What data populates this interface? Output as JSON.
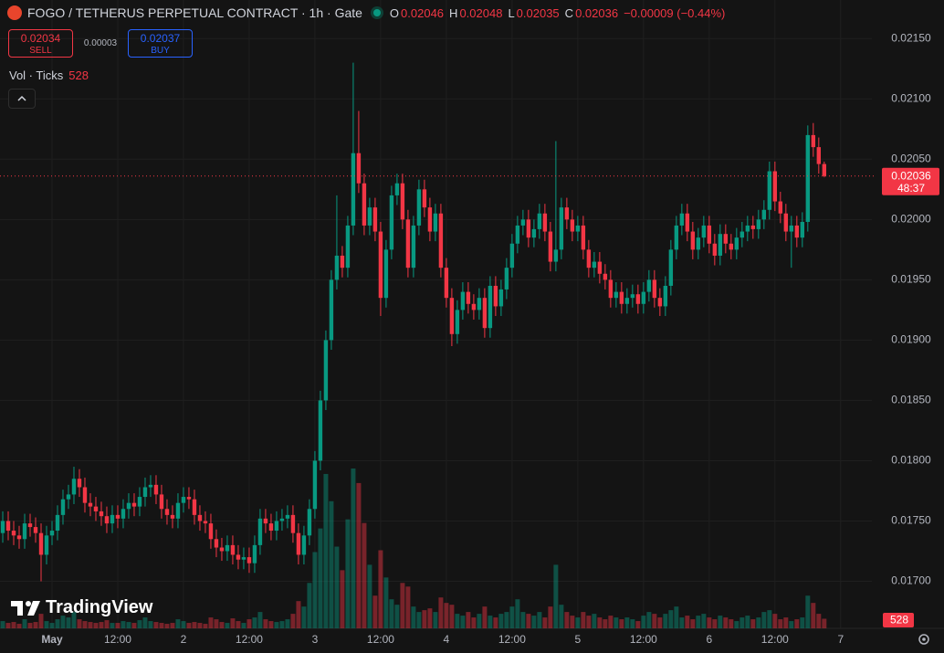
{
  "header": {
    "title": "FOGO / TETHERUS PERPETUAL CONTRACT · 1h · Gate",
    "o": "O",
    "h": "H",
    "l": "L",
    "c": "C",
    "change": "−0.00009 (−0.44%)"
  },
  "trade": {
    "sell_price": "0.02034",
    "sell": "SELL",
    "spread": "0.00003",
    "buy_price": "0.02037",
    "buy": "BUY"
  },
  "volume_legend": "Vol · Ticks",
  "countdown": "48:37",
  "watermark": "TradingView",
  "chart_data": {
    "type": "candlestick",
    "open": [
      0.0174,
      0.0175,
      0.01742,
      0.01738,
      0.01735,
      0.01748,
      0.01745,
      0.0174,
      0.01722,
      0.01738,
      0.01742,
      0.01755,
      0.01768,
      0.01772,
      0.01785,
      0.01778,
      0.01765,
      0.01762,
      0.01758,
      0.01754,
      0.01748,
      0.01755,
      0.01752,
      0.0176,
      0.01765,
      0.01762,
      0.0177,
      0.01778,
      0.0178,
      0.01772,
      0.0176,
      0.01755,
      0.01752,
      0.01765,
      0.0177,
      0.01768,
      0.01755,
      0.0175,
      0.01748,
      0.01735,
      0.01728,
      0.01725,
      0.0173,
      0.01722,
      0.01718,
      0.0172,
      0.01715,
      0.0173,
      0.01752,
      0.01748,
      0.01742,
      0.0175,
      0.01752,
      0.01755,
      0.0174,
      0.01722,
      0.01738,
      0.0176,
      0.018,
      0.0185,
      0.019,
      0.0195,
      0.0197,
      0.0196,
      0.01995,
      0.02055,
      0.0203,
      0.01995,
      0.0201,
      0.0199,
      0.01935,
      0.01975,
      0.0202,
      0.0203,
      0.02,
      0.0196,
      0.01995,
      0.02025,
      0.0201,
      0.0199,
      0.02005,
      0.0196,
      0.01935,
      0.01905,
      0.01925,
      0.0194,
      0.0193,
      0.01925,
      0.01935,
      0.0191,
      0.01945,
      0.01928,
      0.01942,
      0.0196,
      0.0198,
      0.01995,
      0.02,
      0.01985,
      0.01992,
      0.02005,
      0.0199,
      0.01965,
      0.01975,
      0.0201,
      0.02,
      0.0199,
      0.01995,
      0.01975,
      0.0196,
      0.01965,
      0.01955,
      0.0195,
      0.01935,
      0.0194,
      0.0193,
      0.01935,
      0.01938,
      0.0193,
      0.0194,
      0.0195,
      0.01935,
      0.01928,
      0.01945,
      0.01975,
      0.01995,
      0.02005,
      0.0199,
      0.01975,
      0.01985,
      0.01995,
      0.0198,
      0.0197,
      0.01988,
      0.0198,
      0.01975,
      0.01985,
      0.0199,
      0.01995,
      0.01992,
      0.02,
      0.02008,
      0.0204,
      0.02015,
      0.02005,
      0.0199,
      0.01995,
      0.01985,
      0.01998,
      0.0207,
      0.0206,
      0.02046
    ],
    "high": [
      0.01758,
      0.01758,
      0.0175,
      0.01746,
      0.01756,
      0.01756,
      0.01753,
      0.01748,
      0.01746,
      0.0175,
      0.01763,
      0.01776,
      0.0178,
      0.01795,
      0.01793,
      0.01786,
      0.01773,
      0.0177,
      0.01766,
      0.01762,
      0.01763,
      0.01763,
      0.01768,
      0.01773,
      0.01773,
      0.01778,
      0.01786,
      0.01788,
      0.01788,
      0.0178,
      0.01768,
      0.01763,
      0.01773,
      0.01778,
      0.01778,
      0.01776,
      0.01763,
      0.01758,
      0.01756,
      0.01743,
      0.01736,
      0.01738,
      0.01738,
      0.0173,
      0.01728,
      0.01728,
      0.01738,
      0.0176,
      0.0176,
      0.01756,
      0.01758,
      0.0176,
      0.01763,
      0.01763,
      0.01748,
      0.01746,
      0.01768,
      0.01808,
      0.01858,
      0.01908,
      0.01958,
      0.0202,
      0.01978,
      0.02003,
      0.0213,
      0.0209,
      0.02038,
      0.02018,
      0.02018,
      0.01998,
      0.01983,
      0.02028,
      0.02038,
      0.02038,
      0.02008,
      0.02003,
      0.02033,
      0.02033,
      0.02018,
      0.02013,
      0.02013,
      0.01968,
      0.01943,
      0.01933,
      0.01948,
      0.01948,
      0.01938,
      0.01943,
      0.01943,
      0.01953,
      0.01953,
      0.0195,
      0.01968,
      0.01988,
      0.02003,
      0.02008,
      0.02008,
      0.02,
      0.02013,
      0.02013,
      0.01998,
      0.02065,
      0.02018,
      0.02018,
      0.02008,
      0.02003,
      0.02003,
      0.01983,
      0.01973,
      0.01973,
      0.01963,
      0.01958,
      0.01948,
      0.01948,
      0.01943,
      0.01946,
      0.01946,
      0.01948,
      0.01958,
      0.01958,
      0.01943,
      0.01953,
      0.01983,
      0.02003,
      0.02013,
      0.02013,
      0.01998,
      0.01993,
      0.02003,
      0.02003,
      0.01988,
      0.01996,
      0.01996,
      0.01988,
      0.01993,
      0.01998,
      0.02003,
      0.02003,
      0.02008,
      0.02016,
      0.02048,
      0.02048,
      0.02023,
      0.02013,
      0.02003,
      0.02003,
      0.02006,
      0.02078,
      0.0208,
      0.02068,
      0.02048
    ],
    "low": [
      0.01732,
      0.01734,
      0.0173,
      0.01727,
      0.01727,
      0.01737,
      0.01732,
      0.017,
      0.01714,
      0.0173,
      0.01734,
      0.01747,
      0.0176,
      0.01764,
      0.0177,
      0.01757,
      0.01754,
      0.0175,
      0.01746,
      0.0174,
      0.0174,
      0.01744,
      0.01744,
      0.01752,
      0.01754,
      0.01754,
      0.01762,
      0.0177,
      0.01764,
      0.01752,
      0.01747,
      0.01744,
      0.01744,
      0.01757,
      0.0176,
      0.01747,
      0.01742,
      0.0174,
      0.01727,
      0.0172,
      0.01717,
      0.01717,
      0.01714,
      0.0171,
      0.0171,
      0.01707,
      0.01707,
      0.01722,
      0.0174,
      0.01734,
      0.01734,
      0.01742,
      0.01744,
      0.01732,
      0.01714,
      0.01714,
      0.0173,
      0.01752,
      0.01792,
      0.01842,
      0.01892,
      0.01942,
      0.01952,
      0.01952,
      0.01987,
      0.02022,
      0.01987,
      0.01987,
      0.01982,
      0.0192,
      0.01927,
      0.01967,
      0.02012,
      0.01992,
      0.01952,
      0.01952,
      0.01987,
      0.02002,
      0.01982,
      0.01982,
      0.01952,
      0.01927,
      0.01895,
      0.01897,
      0.01917,
      0.01922,
      0.01917,
      0.01917,
      0.01902,
      0.01902,
      0.0192,
      0.0192,
      0.01934,
      0.01952,
      0.01972,
      0.01987,
      0.01977,
      0.01977,
      0.01984,
      0.01982,
      0.01957,
      0.01957,
      0.01967,
      0.01992,
      0.01982,
      0.01982,
      0.01967,
      0.01952,
      0.01952,
      0.01947,
      0.01942,
      0.01927,
      0.01927,
      0.01922,
      0.01922,
      0.01927,
      0.01922,
      0.01922,
      0.01932,
      0.01927,
      0.0192,
      0.0192,
      0.01937,
      0.01967,
      0.01987,
      0.01982,
      0.01967,
      0.01967,
      0.01977,
      0.01972,
      0.01962,
      0.01962,
      0.01972,
      0.01967,
      0.01967,
      0.01977,
      0.01982,
      0.01984,
      0.01984,
      0.01992,
      0.02,
      0.02007,
      0.01997,
      0.01982,
      0.0196,
      0.01977,
      0.01977,
      0.0199,
      0.02052,
      0.02038,
      0.02035
    ],
    "close": [
      0.0175,
      0.01742,
      0.01738,
      0.01735,
      0.01748,
      0.01745,
      0.0174,
      0.01722,
      0.01738,
      0.01742,
      0.01755,
      0.01768,
      0.01772,
      0.01785,
      0.01778,
      0.01765,
      0.01762,
      0.01758,
      0.01754,
      0.01748,
      0.01755,
      0.01752,
      0.0176,
      0.01765,
      0.01762,
      0.0177,
      0.01778,
      0.0178,
      0.01772,
      0.0176,
      0.01755,
      0.01752,
      0.01765,
      0.0177,
      0.01768,
      0.01755,
      0.0175,
      0.01748,
      0.01735,
      0.01728,
      0.01725,
      0.0173,
      0.01722,
      0.01718,
      0.0172,
      0.01715,
      0.0173,
      0.01752,
      0.01748,
      0.01742,
      0.0175,
      0.01752,
      0.01755,
      0.0174,
      0.01722,
      0.01738,
      0.0176,
      0.018,
      0.0185,
      0.019,
      0.0195,
      0.0197,
      0.0196,
      0.01995,
      0.02055,
      0.0203,
      0.01995,
      0.0201,
      0.0199,
      0.01935,
      0.01975,
      0.0202,
      0.0203,
      0.02,
      0.0196,
      0.01995,
      0.02025,
      0.0201,
      0.0199,
      0.02005,
      0.0196,
      0.01935,
      0.01905,
      0.01925,
      0.0194,
      0.0193,
      0.01925,
      0.01935,
      0.0191,
      0.01945,
      0.01928,
      0.01942,
      0.0196,
      0.0198,
      0.01995,
      0.02,
      0.01985,
      0.01992,
      0.02005,
      0.0199,
      0.01965,
      0.01975,
      0.0201,
      0.02,
      0.0199,
      0.01995,
      0.01975,
      0.0196,
      0.01965,
      0.01955,
      0.0195,
      0.01935,
      0.0194,
      0.0193,
      0.01935,
      0.01938,
      0.0193,
      0.0194,
      0.0195,
      0.01935,
      0.01928,
      0.01945,
      0.01975,
      0.01995,
      0.02005,
      0.0199,
      0.01975,
      0.01985,
      0.01995,
      0.0198,
      0.0197,
      0.01988,
      0.0198,
      0.01975,
      0.01985,
      0.0199,
      0.01995,
      0.01992,
      0.02,
      0.02008,
      0.0204,
      0.02015,
      0.02005,
      0.0199,
      0.01995,
      0.01985,
      0.01998,
      0.0207,
      0.0206,
      0.02046,
      0.02036
    ],
    "volume": [
      400,
      300,
      350,
      250,
      500,
      300,
      350,
      800,
      400,
      300,
      500,
      700,
      600,
      900,
      500,
      400,
      350,
      300,
      350,
      450,
      300,
      300,
      400,
      350,
      300,
      450,
      600,
      400,
      350,
      300,
      250,
      300,
      500,
      400,
      300,
      350,
      300,
      250,
      600,
      500,
      350,
      300,
      550,
      400,
      300,
      500,
      600,
      900,
      500,
      400,
      350,
      400,
      500,
      800,
      1500,
      1200,
      2500,
      4200,
      5500,
      8500,
      7000,
      4500,
      3200,
      6000,
      8800,
      8000,
      5800,
      3500,
      1800,
      4300,
      2800,
      1600,
      1300,
      2500,
      2300,
      1200,
      900,
      1000,
      1100,
      900,
      1700,
      1400,
      1300,
      800,
      700,
      900,
      600,
      800,
      1200,
      700,
      600,
      800,
      900,
      1200,
      1600,
      900,
      800,
      700,
      900,
      600,
      1200,
      3500,
      1300,
      900,
      700,
      600,
      900,
      700,
      800,
      600,
      500,
      700,
      600,
      500,
      600,
      500,
      400,
      700,
      900,
      800,
      600,
      800,
      1000,
      1200,
      600,
      700,
      500,
      700,
      800,
      600,
      500,
      700,
      600,
      500,
      400,
      600,
      700,
      500,
      600,
      900,
      1000,
      800,
      500,
      600,
      400,
      500,
      600,
      1800,
      1400,
      800,
      528
    ],
    "up_color": "#089981",
    "down_color": "#f23645",
    "ylim": [
      0.01661,
      0.02182
    ],
    "yticks": [
      {
        "value": 0.017,
        "label": "0.01700"
      },
      {
        "value": 0.0175,
        "label": "0.01750"
      },
      {
        "value": 0.018,
        "label": "0.01800"
      },
      {
        "value": 0.0185,
        "label": "0.01850"
      },
      {
        "value": 0.019,
        "label": "0.01900"
      },
      {
        "value": 0.0195,
        "label": "0.01950"
      },
      {
        "value": 0.02,
        "label": "0.02000"
      },
      {
        "value": 0.0205,
        "label": "0.02050"
      },
      {
        "value": 0.021,
        "label": "0.02100"
      },
      {
        "value": 0.0215,
        "label": "0.02150"
      }
    ],
    "xlim": [
      -0.5,
      158.7
    ],
    "xticks": [
      {
        "value": 9,
        "label": "May"
      },
      {
        "value": 21,
        "label": "12:00"
      },
      {
        "value": 33,
        "label": "2"
      },
      {
        "value": 45,
        "label": "12:00"
      },
      {
        "value": 57,
        "label": "3"
      },
      {
        "value": 69,
        "label": "12:00"
      },
      {
        "value": 81,
        "label": "4"
      },
      {
        "value": 93,
        "label": "12:00"
      },
      {
        "value": 105,
        "label": "5"
      },
      {
        "value": 117,
        "label": "12:00"
      },
      {
        "value": 129,
        "label": "6"
      },
      {
        "value": 141,
        "label": "12:00"
      },
      {
        "value": 153,
        "label": "7"
      }
    ],
    "grid": true
  }
}
